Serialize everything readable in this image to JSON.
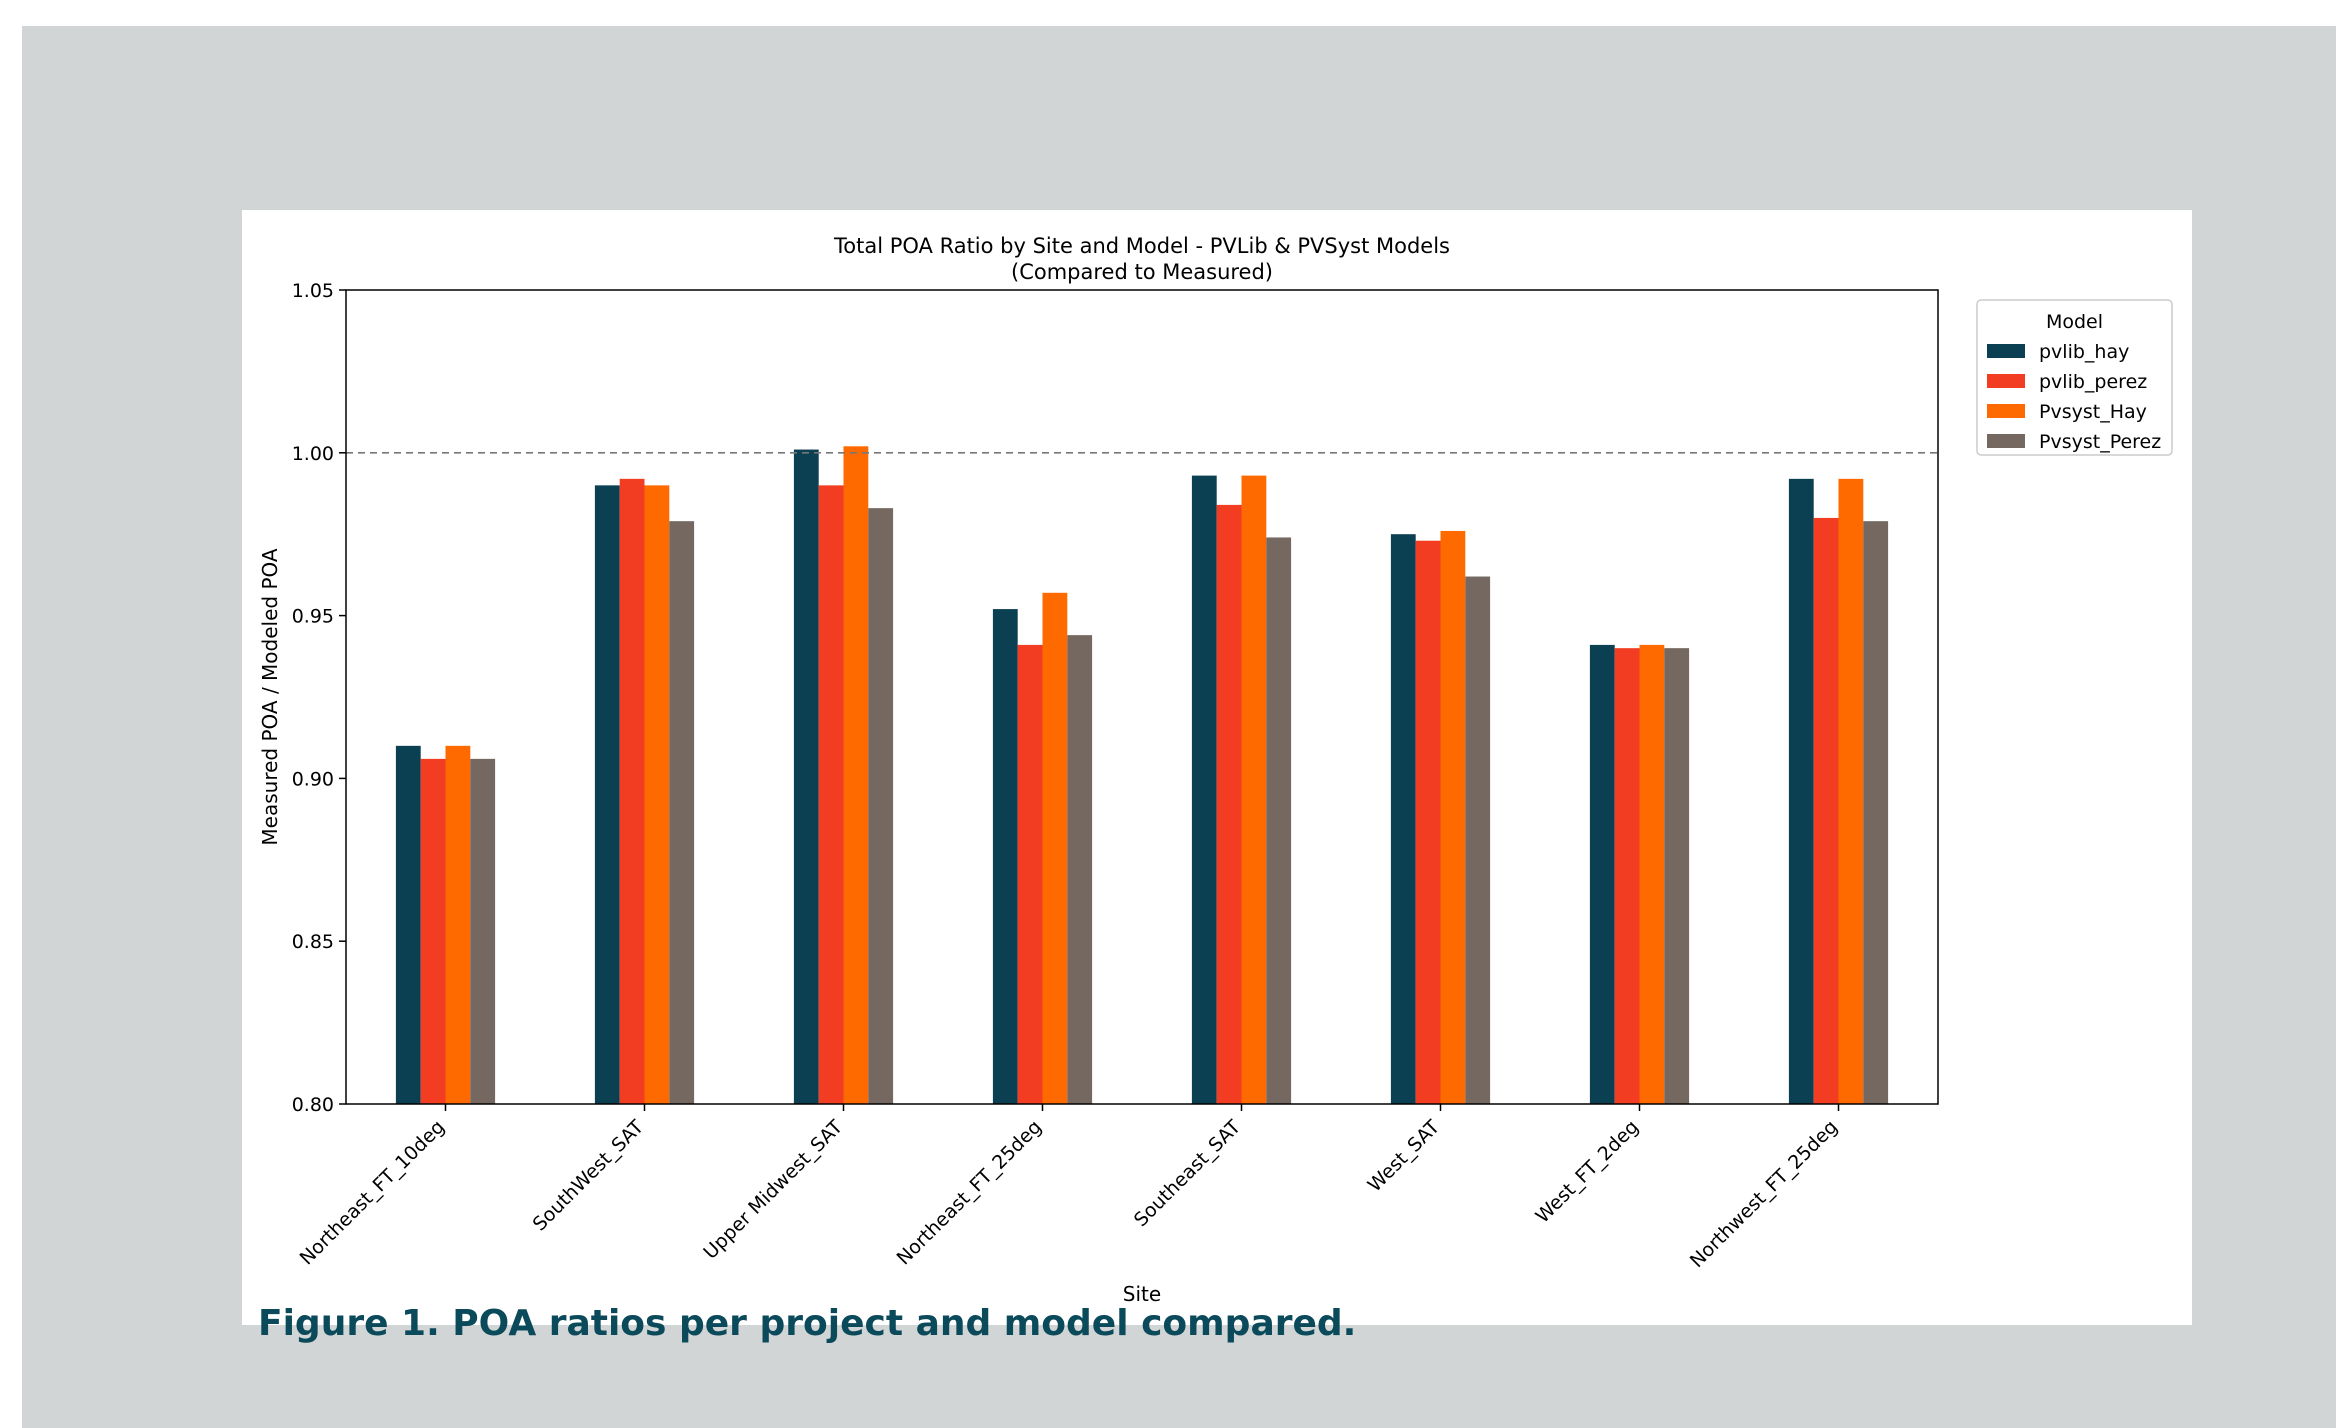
{
  "chart_data": {
    "type": "bar",
    "title": "Total POA Ratio by Site and Model - PVLib & PVSyst Models",
    "subtitle": "(Compared to Measured)",
    "xlabel": "Site",
    "ylabel": "Measured POA / Modeled POA",
    "ylim": [
      0.8,
      1.05
    ],
    "yticks": [
      "0.80",
      "0.85",
      "0.90",
      "0.95",
      "1.00",
      "1.05"
    ],
    "reference_line": 1.0,
    "grid": false,
    "legend_title": "Model",
    "legend_position": "upper right outside",
    "categories": [
      "Northeast_FT_10deg",
      "SouthWest_SAT",
      "Upper Midwest_SAT",
      "Northeast_FT_25deg",
      "Southeast_SAT",
      "West_SAT",
      "West_FT_2deg",
      "Northwest_FT_25deg"
    ],
    "series": [
      {
        "name": "pvlib_hay",
        "color": "#0b3f52",
        "values": [
          0.91,
          0.99,
          1.001,
          0.952,
          0.993,
          0.975,
          0.941,
          0.992
        ]
      },
      {
        "name": "pvlib_perez",
        "color": "#f23d22",
        "values": [
          0.906,
          0.992,
          0.99,
          0.941,
          0.984,
          0.973,
          0.94,
          0.98
        ]
      },
      {
        "name": "Pvsyst_Hay",
        "color": "#ff6a00",
        "values": [
          0.91,
          0.99,
          1.002,
          0.957,
          0.993,
          0.976,
          0.941,
          0.992
        ]
      },
      {
        "name": "Pvsyst_Perez",
        "color": "#746860",
        "values": [
          0.906,
          0.979,
          0.983,
          0.944,
          0.974,
          0.962,
          0.94,
          0.979
        ]
      }
    ]
  },
  "caption": "Figure 1. POA ratios per project and model compared."
}
